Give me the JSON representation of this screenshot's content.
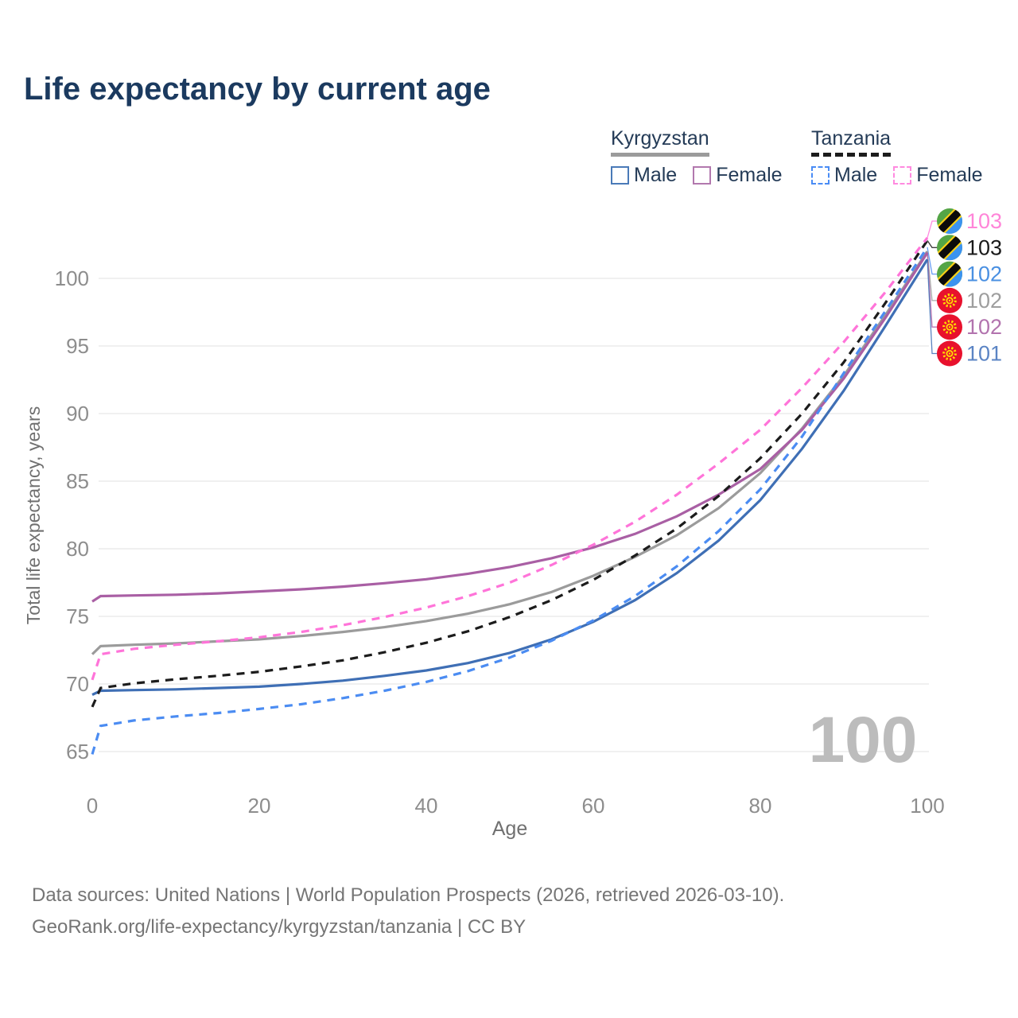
{
  "title": "Life expectancy by current age",
  "legend": {
    "groups": [
      {
        "label": "Kyrgyzstan",
        "line_style": "solid",
        "underline_color": "#9b9b9b",
        "items": [
          {
            "label": "Male",
            "color": "#4a7ab8",
            "dashed": false
          },
          {
            "label": "Female",
            "color": "#b278ae",
            "dashed": false
          }
        ]
      },
      {
        "label": "Tanzania",
        "line_style": "dashed",
        "underline_color": "#1c1c1c",
        "items": [
          {
            "label": "Male",
            "color": "#4a8cf5",
            "dashed": true
          },
          {
            "label": "Female",
            "color": "#ff8ae0",
            "dashed": true
          }
        ]
      }
    ]
  },
  "watermark": "100",
  "footer": {
    "line1": "Data sources: United Nations | World Population Prospects (2026, retrieved 2026-03-10).",
    "line2": "GeoRank.org/life-expectancy/kyrgyzstan/tanzania | CC BY"
  },
  "chart_data": {
    "type": "line",
    "title": "Life expectancy by current age",
    "xlabel": "Age",
    "ylabel": "Total life expectancy, years",
    "x_ticks": [
      0,
      20,
      40,
      60,
      80,
      100
    ],
    "y_ticks": [
      65,
      70,
      75,
      80,
      85,
      90,
      95,
      100
    ],
    "xlim": [
      0,
      100
    ],
    "ylim": [
      63,
      104
    ],
    "grid": "horizontal",
    "legend_position": "top-right",
    "ages": [
      0,
      1,
      5,
      10,
      15,
      20,
      25,
      30,
      35,
      40,
      45,
      50,
      55,
      60,
      65,
      70,
      75,
      80,
      85,
      90,
      95,
      100
    ],
    "series": [
      {
        "name": "Kyrgyzstan (both sexes)",
        "country": "Kyrgyzstan",
        "sex": "both",
        "color": "#9b9b9b",
        "dashed": false,
        "values": [
          72.2,
          72.8,
          72.9,
          73.0,
          73.15,
          73.3,
          73.55,
          73.85,
          74.2,
          74.65,
          75.2,
          75.9,
          76.8,
          78.0,
          79.4,
          81.0,
          83.0,
          85.6,
          88.9,
          92.8,
          97.3,
          102.0
        ]
      },
      {
        "name": "Kyrgyzstan Female",
        "country": "Kyrgyzstan",
        "sex": "female",
        "color": "#a95fa4",
        "dashed": false,
        "values": [
          76.1,
          76.5,
          76.55,
          76.6,
          76.7,
          76.85,
          77.0,
          77.2,
          77.45,
          77.75,
          78.15,
          78.65,
          79.3,
          80.1,
          81.1,
          82.4,
          84.0,
          85.9,
          88.8,
          92.6,
          97.1,
          101.9
        ]
      },
      {
        "name": "Kyrgyzstan Male",
        "country": "Kyrgyzstan",
        "sex": "male",
        "color": "#3f6fb5",
        "dashed": false,
        "values": [
          69.2,
          69.5,
          69.55,
          69.6,
          69.7,
          69.8,
          70.0,
          70.25,
          70.6,
          71.0,
          71.55,
          72.3,
          73.3,
          74.6,
          76.2,
          78.2,
          80.6,
          83.6,
          87.4,
          91.7,
          96.5,
          101.4
        ]
      },
      {
        "name": "Tanzania (both sexes)",
        "country": "Tanzania",
        "sex": "both",
        "color": "#1c1c1c",
        "dashed": true,
        "values": [
          68.3,
          69.7,
          70.05,
          70.35,
          70.6,
          70.9,
          71.3,
          71.75,
          72.35,
          73.05,
          73.9,
          74.95,
          76.2,
          77.7,
          79.5,
          81.5,
          83.9,
          86.7,
          90.0,
          93.8,
          98.2,
          102.8
        ]
      },
      {
        "name": "Tanzania Female",
        "country": "Tanzania",
        "sex": "female",
        "color": "#ff74d9",
        "dashed": true,
        "values": [
          70.3,
          72.2,
          72.6,
          72.9,
          73.15,
          73.45,
          73.85,
          74.35,
          74.95,
          75.65,
          76.5,
          77.5,
          78.8,
          80.3,
          82.0,
          84.0,
          86.3,
          88.8,
          91.9,
          95.3,
          99.0,
          103.0
        ]
      },
      {
        "name": "Tanzania Male",
        "country": "Tanzania",
        "sex": "male",
        "color": "#4b8cf2",
        "dashed": true,
        "values": [
          64.8,
          66.9,
          67.3,
          67.6,
          67.85,
          68.15,
          68.5,
          68.95,
          69.5,
          70.15,
          70.95,
          71.95,
          73.2,
          74.7,
          76.5,
          78.7,
          81.3,
          84.4,
          88.3,
          93.0,
          97.6,
          102.3
        ]
      }
    ],
    "end_labels": [
      {
        "text": "103",
        "color": "#ff85d8",
        "flag": "tanzania",
        "series": "Tanzania Female"
      },
      {
        "text": "103",
        "color": "#1a1a1a",
        "flag": "tanzania",
        "series": "Tanzania (both sexes)"
      },
      {
        "text": "102",
        "color": "#4a90e2",
        "flag": "tanzania",
        "series": "Tanzania Male"
      },
      {
        "text": "102",
        "color": "#9e9e9e",
        "flag": "kyrgyzstan",
        "series": "Kyrgyzstan (both sexes)"
      },
      {
        "text": "102",
        "color": "#b273ae",
        "flag": "kyrgyzstan",
        "series": "Kyrgyzstan Female"
      },
      {
        "text": "101",
        "color": "#5b84c4",
        "flag": "kyrgyzstan",
        "series": "Kyrgyzstan Male"
      }
    ]
  }
}
